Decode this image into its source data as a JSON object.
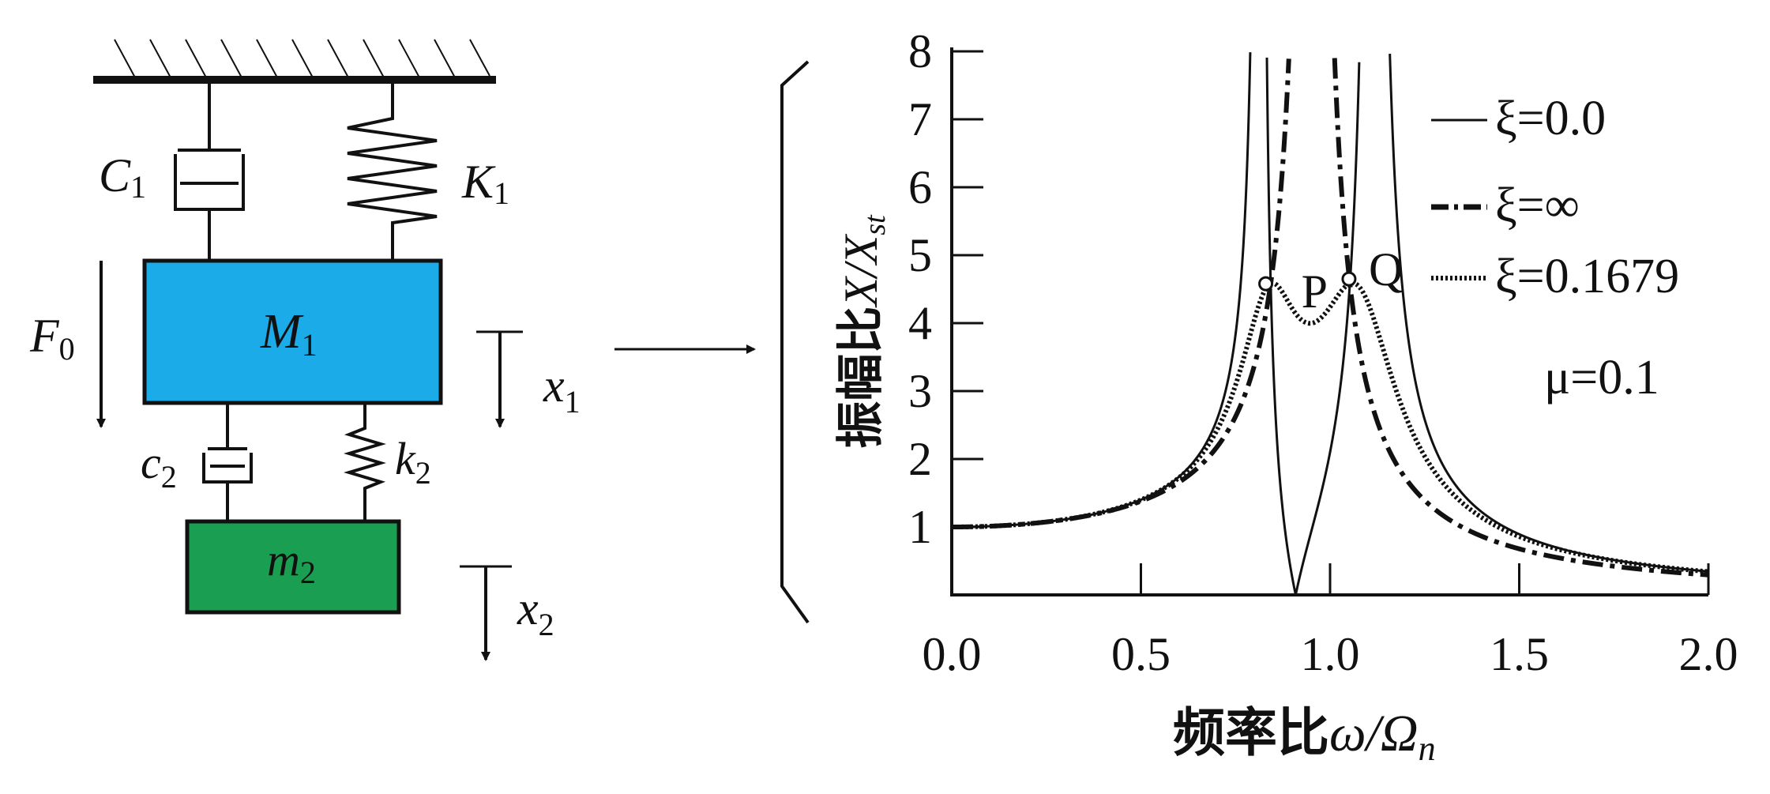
{
  "mechanical_model": {
    "damper1_label": "C",
    "damper1_sub": "1",
    "spring1_label": "K",
    "spring1_sub": "1",
    "force_label": "F",
    "force_sub": "0",
    "mass1_label": "M",
    "mass1_sub": "1",
    "damper2_label": "c",
    "damper2_sub": "2",
    "spring2_label": "k",
    "spring2_sub": "2",
    "mass2_label": "m",
    "mass2_sub": "2",
    "disp1_label": "x",
    "disp1_sub": "1",
    "disp2_label": "x",
    "disp2_sub": "2",
    "colors": {
      "mass1": "#1aabe8",
      "mass2": "#1a9e52"
    }
  },
  "chart_data": {
    "type": "line",
    "ylabel_cn": "振幅比",
    "ylabel_var": "X/X",
    "ylabel_sub": "st",
    "xlabel_cn": "频率比",
    "xlabel_var": "ω/Ω",
    "xlabel_sub": "n",
    "xlim": [
      0.0,
      2.0
    ],
    "ylim": [
      0,
      8
    ],
    "xticks": [
      "0.0",
      "0.5",
      "1.0",
      "1.5",
      "2.0"
    ],
    "yticks": [
      "1",
      "2",
      "3",
      "4",
      "5",
      "6",
      "7",
      "8"
    ],
    "mu_label": "μ=0.1",
    "mass_ratio": 0.1,
    "tuning_ratio": 0.9091,
    "legend": [
      {
        "id": "zero",
        "label": "ξ=0.0",
        "zeta": 0.0,
        "style": "solid"
      },
      {
        "id": "inf",
        "label": "ξ=∞",
        "zeta": "infinity",
        "style": "dashdot"
      },
      {
        "id": "opt",
        "label": "ξ=0.1679",
        "zeta": 0.1679,
        "style": "dotted"
      }
    ],
    "fixed_points": [
      {
        "label": "P",
        "x": 0.83,
        "y": 4.58
      },
      {
        "label": "Q",
        "x": 1.05,
        "y": 4.65
      }
    ],
    "series": [
      {
        "id": "zero",
        "x": [
          0.0,
          0.3,
          0.5,
          0.6,
          0.7,
          0.75,
          0.78,
          0.8,
          0.85,
          0.88,
          0.91,
          0.95,
          1.0,
          1.03,
          1.06,
          1.1,
          1.15,
          1.2,
          1.3,
          1.5,
          1.8,
          2.0
        ],
        "y": [
          1.0,
          1.1,
          1.35,
          1.6,
          2.4,
          4.2,
          8.0,
          8.0,
          3.0,
          1.3,
          0.0,
          1.4,
          2.9,
          4.6,
          8.0,
          8.0,
          8.0,
          3.0,
          1.6,
          0.9,
          0.55,
          0.42
        ]
      },
      {
        "id": "inf",
        "x": [
          0.0,
          0.3,
          0.5,
          0.6,
          0.7,
          0.75,
          0.8,
          0.83,
          0.86,
          0.88,
          0.9,
          0.92,
          0.93,
          1.0,
          1.05,
          1.1,
          1.2,
          1.3,
          1.5,
          1.8,
          2.0
        ],
        "y": [
          1.0,
          1.1,
          1.35,
          1.6,
          2.1,
          2.6,
          3.6,
          4.58,
          6.2,
          8.0,
          8.0,
          8.0,
          8.0,
          6.5,
          4.65,
          3.0,
          1.7,
          1.1,
          0.65,
          0.45,
          0.38
        ]
      },
      {
        "id": "opt",
        "x": [
          0.0,
          0.3,
          0.5,
          0.6,
          0.7,
          0.75,
          0.8,
          0.83,
          0.86,
          0.9,
          0.94,
          0.98,
          1.02,
          1.05,
          1.08,
          1.12,
          1.2,
          1.3,
          1.5,
          1.8,
          2.0
        ],
        "y": [
          1.0,
          1.1,
          1.35,
          1.6,
          2.3,
          2.9,
          3.9,
          4.58,
          4.45,
          4.15,
          4.0,
          4.2,
          4.55,
          4.65,
          4.4,
          3.7,
          2.4,
          1.6,
          0.9,
          0.55,
          0.42
        ]
      }
    ]
  }
}
